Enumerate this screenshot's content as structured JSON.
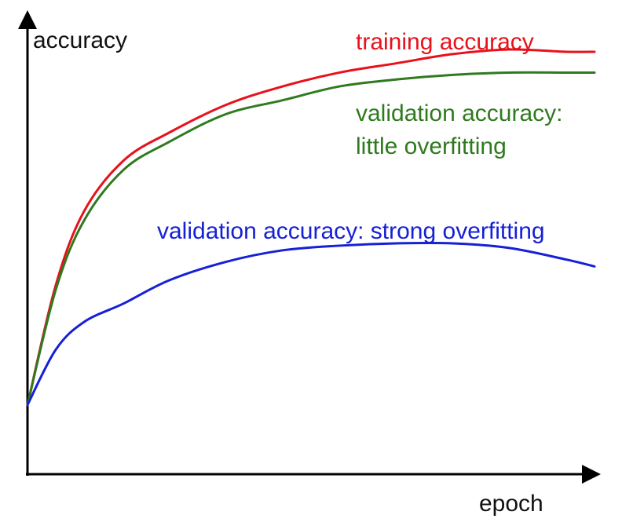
{
  "chart_data": {
    "type": "line",
    "xlabel": "epoch",
    "ylabel": "accuracy",
    "xlim": [
      0,
      100
    ],
    "ylim": [
      0,
      100
    ],
    "grid": false,
    "legend": "inline labels",
    "ticks": "none",
    "series": [
      {
        "name": "training accuracy",
        "color": "#e8111b",
        "label_lines": [
          "training accuracy"
        ],
        "x": [
          0,
          5,
          10,
          17,
          25,
          35,
          45,
          55,
          65,
          75,
          85,
          95,
          100
        ],
        "y": [
          15,
          41,
          57,
          68,
          74,
          80,
          84,
          87,
          89,
          91,
          92,
          91.5,
          91.5
        ]
      },
      {
        "name": "validation accuracy: little overfitting",
        "color": "#2f7a1f",
        "label_lines": [
          "validation accuracy:",
          "little overfitting"
        ],
        "x": [
          0,
          5,
          10,
          17,
          25,
          35,
          45,
          55,
          65,
          75,
          85,
          95,
          100
        ],
        "y": [
          15,
          40,
          55,
          66,
          72,
          78,
          81,
          84,
          85.5,
          86.5,
          87,
          87,
          87
        ]
      },
      {
        "name": "validation accuracy: strong overfitting",
        "color": "#1620d6",
        "label_lines": [
          "validation accuracy: strong overfitting"
        ],
        "x": [
          0,
          5,
          10,
          17,
          25,
          35,
          45,
          55,
          65,
          75,
          85,
          95,
          100
        ],
        "y": [
          15,
          27,
          33,
          37,
          42,
          46,
          48.5,
          49.5,
          50,
          50,
          49,
          46.5,
          45
        ]
      }
    ]
  }
}
